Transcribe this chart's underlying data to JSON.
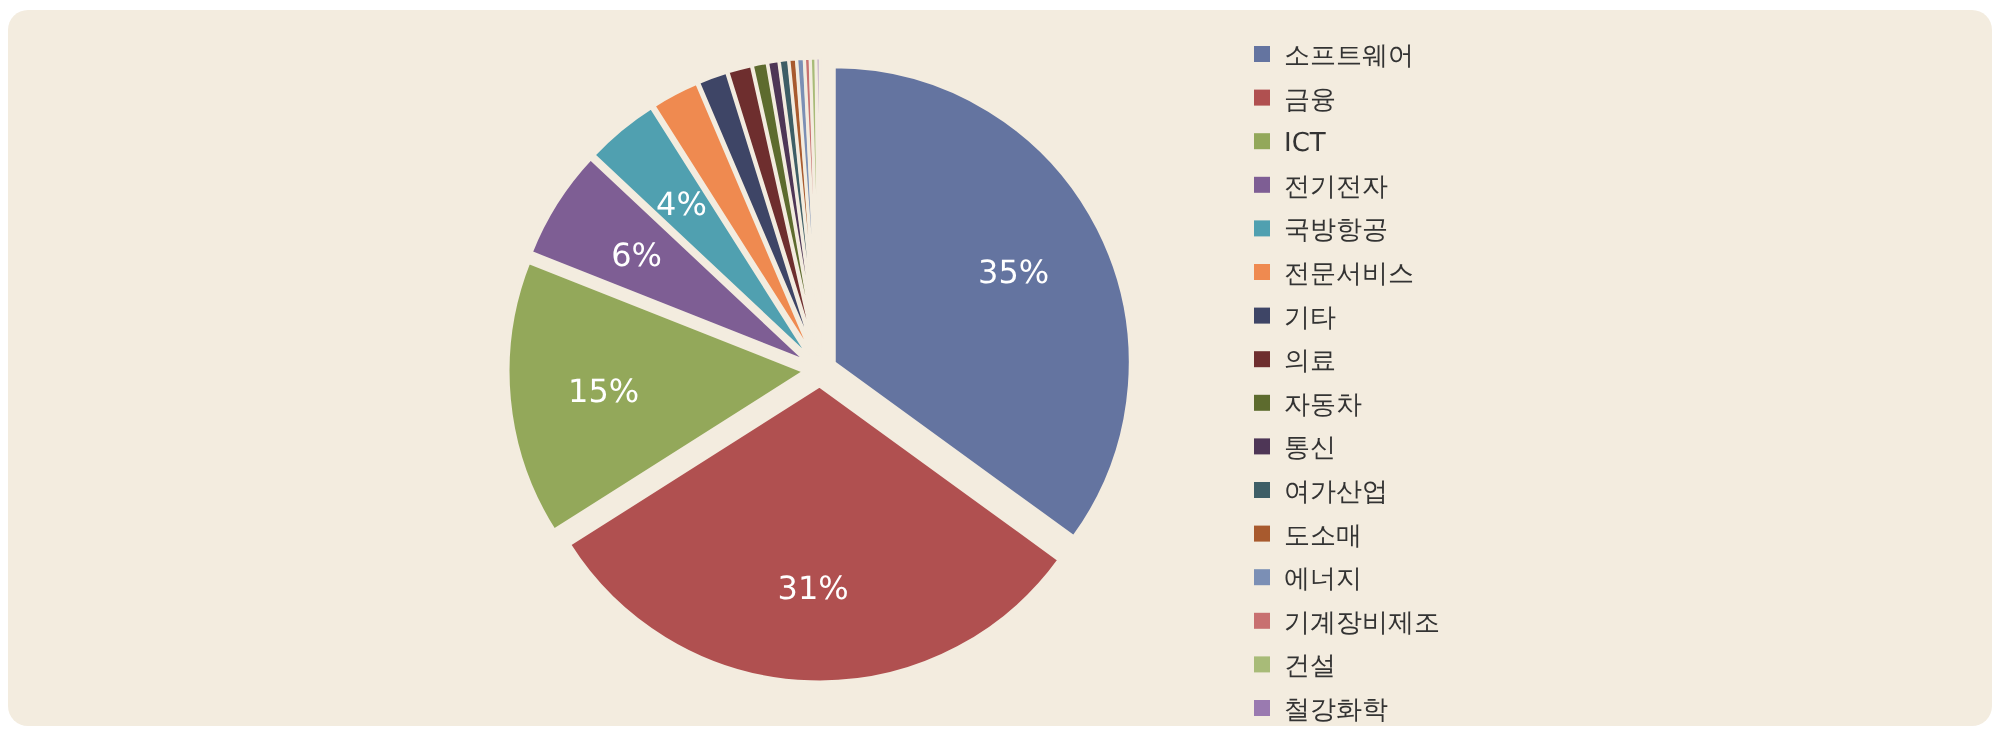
{
  "chart_data": {
    "type": "pie",
    "categories": [
      "소프트웨어",
      "금융",
      "ICT",
      "전기전자",
      "국방항공",
      "전문서비스",
      "기타",
      "의료",
      "자동차",
      "통신",
      "여가산업",
      "도소매",
      "에너지",
      "기계장비제조",
      "건설",
      "철강화학"
    ],
    "values": [
      35,
      31,
      15,
      6,
      4,
      2.6,
      1.6,
      1.3,
      0.8,
      0.6,
      0.5,
      0.4,
      0.4,
      0.3,
      0.3,
      0.2
    ],
    "colors": [
      "#6474a0",
      "#b05050",
      "#93a85a",
      "#7e5e94",
      "#50a0b0",
      "#ef8a50",
      "#3e4566",
      "#6e2e2e",
      "#5d6b2e",
      "#4e3656",
      "#3e5e66",
      "#a85a2e",
      "#7b8fb5",
      "#c87070",
      "#a8bb78",
      "#9a7ab0"
    ],
    "value_labels": [
      "35%",
      "31%",
      "15%",
      "6%",
      "4%",
      null,
      null,
      null,
      null,
      null,
      null,
      null,
      null,
      null,
      null,
      null
    ],
    "legend": "right"
  }
}
